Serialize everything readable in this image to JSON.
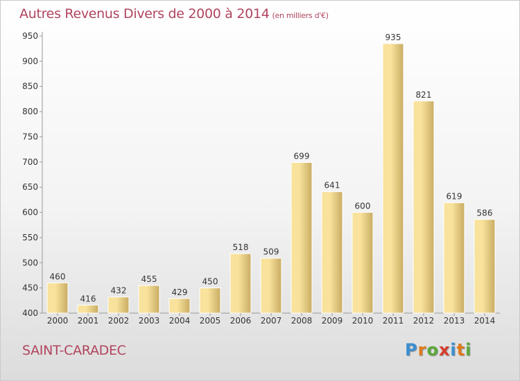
{
  "title": "Autres Revenus Divers de 2000 à 2014",
  "title_unit": "(en milliers d'€)",
  "commune": "SAINT-CARADEC",
  "logo": {
    "letters": [
      "P",
      "r",
      "o",
      "x",
      "i",
      "t",
      "i"
    ],
    "colors": [
      "#3b8ed0",
      "#e07a1a",
      "#5aa83a",
      "#d63c2a",
      "#3b8ed0",
      "#e07a1a",
      "#5aa83a"
    ]
  },
  "chart_data": {
    "type": "bar",
    "categories": [
      "2000",
      "2001",
      "2002",
      "2003",
      "2004",
      "2005",
      "2006",
      "2007",
      "2008",
      "2009",
      "2010",
      "2011",
      "2012",
      "2013",
      "2014"
    ],
    "values": [
      460,
      416,
      432,
      455,
      429,
      450,
      518,
      509,
      699,
      641,
      600,
      935,
      821,
      619,
      586
    ],
    "ylim": [
      400,
      950
    ],
    "yticks": [
      400,
      450,
      500,
      550,
      600,
      650,
      700,
      750,
      800,
      850,
      900,
      950
    ],
    "grid": false,
    "colors": {
      "bar_light": "#f8e29c",
      "bar_dark": "#c9ac63",
      "title": "#b0445e"
    }
  }
}
